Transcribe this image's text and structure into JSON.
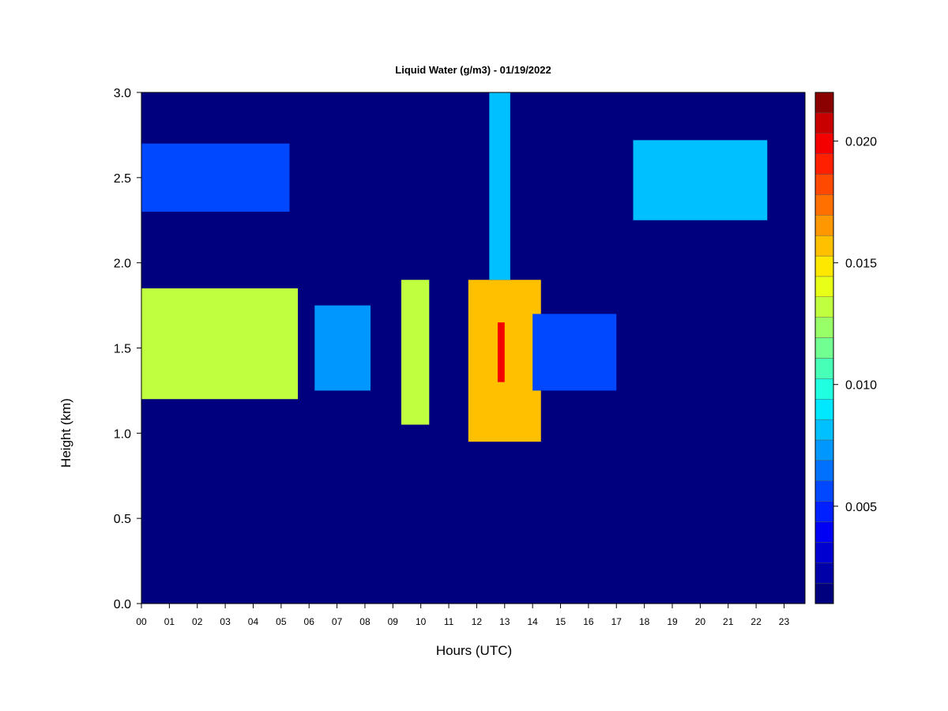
{
  "chart_data": {
    "type": "heatmap",
    "title": "Liquid Water (g/m3) - 01/19/2022",
    "xlabel": "Hours (UTC)",
    "ylabel": "Height (km)",
    "xlim": [
      0,
      23.75
    ],
    "ylim": [
      0,
      3.0
    ],
    "x_ticks": [
      "00",
      "01",
      "02",
      "03",
      "04",
      "05",
      "06",
      "07",
      "08",
      "09",
      "10",
      "11",
      "12",
      "13",
      "14",
      "15",
      "16",
      "17",
      "18",
      "19",
      "20",
      "21",
      "22",
      "23"
    ],
    "y_ticks": [
      "0.0",
      "0.5",
      "1.0",
      "1.5",
      "2.0",
      "2.5",
      "3.0"
    ],
    "colorbar": {
      "min": 0.001,
      "max": 0.022,
      "levels": 21,
      "ticks": [
        0.005,
        0.01,
        0.015,
        0.02
      ],
      "tick_labels": [
        "0.005",
        "0.010",
        "0.015",
        "0.020"
      ],
      "palette": [
        "#00007f",
        "#0000a8",
        "#0000d0",
        "#0000f5",
        "#0020ff",
        "#0048ff",
        "#0070ff",
        "#0098ff",
        "#00c0ff",
        "#00e8ff",
        "#20ffe0",
        "#48ffb8",
        "#70ff90",
        "#98ff68",
        "#c0ff40",
        "#e8ff18",
        "#ffe800",
        "#ffc000",
        "#ff9800",
        "#ff7000",
        "#ff4800",
        "#ff2000",
        "#f50000",
        "#c80000",
        "#8b0000"
      ]
    },
    "background_value": 0.001,
    "regions": [
      {
        "time": [
          0.0,
          5.6
        ],
        "height": [
          1.2,
          1.85
        ],
        "value": 0.0135
      },
      {
        "time": [
          0.0,
          5.3
        ],
        "height": [
          2.3,
          2.7
        ],
        "value": 0.006
      },
      {
        "time": [
          6.2,
          8.2
        ],
        "height": [
          1.25,
          1.75
        ],
        "value": 0.007
      },
      {
        "time": [
          9.3,
          10.3
        ],
        "height": [
          1.05,
          1.9
        ],
        "value": 0.0135
      },
      {
        "time": [
          11.7,
          14.3
        ],
        "height": [
          0.95,
          1.9
        ],
        "value": 0.016
      },
      {
        "time": [
          12.75,
          13.0
        ],
        "height": [
          1.3,
          1.65
        ],
        "value": 0.02
      },
      {
        "time": [
          12.45,
          13.2
        ],
        "height": [
          1.9,
          3.0
        ],
        "value": 0.008
      },
      {
        "time": [
          14.0,
          17.0
        ],
        "height": [
          1.25,
          1.7
        ],
        "value": 0.006
      },
      {
        "time": [
          17.6,
          22.4
        ],
        "height": [
          2.25,
          2.72
        ],
        "value": 0.0085
      }
    ]
  }
}
